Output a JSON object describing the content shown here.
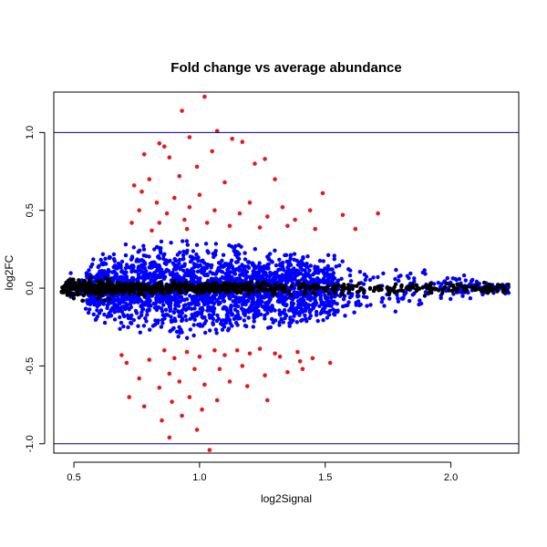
{
  "chart_data": {
    "type": "scatter",
    "title": "Fold change vs average abundance",
    "xlabel": "log2Signal",
    "ylabel": "log2FC",
    "xlim": [
      0.42,
      2.27
    ],
    "ylim": [
      -1.06,
      1.26
    ],
    "x_ticks": [
      0.5,
      1.0,
      1.5,
      2.0
    ],
    "x_tick_labels": [
      "0.5",
      "1.0",
      "1.5",
      "2.0"
    ],
    "y_ticks": [
      -1.0,
      -0.5,
      0.0,
      0.5,
      1.0
    ],
    "y_tick_labels": [
      "-1.0",
      "-0.5",
      "0.0",
      "0.5",
      "1.0"
    ],
    "grid": false,
    "reference_lines": [
      {
        "axis": "y",
        "value": 1.0,
        "color": "#00008b"
      },
      {
        "axis": "y",
        "value": -1.0,
        "color": "#00008b"
      }
    ],
    "series": [
      {
        "color": "#0000ff",
        "description_points": "bulk of features, |log2FC| < ~0.35",
        "x_range": [
          0.48,
          2.23
        ],
        "y_envelope": [
          [
            0.5,
            0.1
          ],
          [
            0.6,
            0.22
          ],
          [
            0.7,
            0.28
          ],
          [
            0.8,
            0.3
          ],
          [
            0.9,
            0.32
          ],
          [
            1.0,
            0.32
          ],
          [
            1.1,
            0.3
          ],
          [
            1.2,
            0.28
          ],
          [
            1.3,
            0.26
          ],
          [
            1.4,
            0.24
          ],
          [
            1.5,
            0.22
          ],
          [
            1.6,
            0.2
          ],
          [
            1.7,
            0.18
          ],
          [
            1.8,
            0.16
          ],
          [
            1.9,
            0.13
          ],
          [
            2.0,
            0.1
          ],
          [
            2.1,
            0.07
          ],
          [
            2.2,
            0.04
          ]
        ]
      },
      {
        "color": "#000000",
        "description_points": "near-zero fold change (dense core)",
        "x_range": [
          0.45,
          2.23
        ]
      },
      {
        "color": "#e41a1c",
        "points": [
          [
            0.93,
            1.14
          ],
          [
            1.02,
            1.23
          ],
          [
            1.07,
            1.01
          ],
          [
            0.96,
            0.97
          ],
          [
            1.13,
            0.96
          ],
          [
            1.17,
            0.94
          ],
          [
            0.84,
            0.93
          ],
          [
            0.86,
            0.91
          ],
          [
            0.78,
            0.86
          ],
          [
            1.05,
            0.88
          ],
          [
            0.88,
            0.84
          ],
          [
            1.26,
            0.83
          ],
          [
            1.22,
            0.8
          ],
          [
            0.99,
            0.78
          ],
          [
            0.74,
            0.66
          ],
          [
            0.8,
            0.7
          ],
          [
            0.92,
            0.72
          ],
          [
            1.3,
            0.7
          ],
          [
            1.1,
            0.68
          ],
          [
            1.49,
            0.61
          ],
          [
            0.77,
            0.62
          ],
          [
            0.83,
            0.55
          ],
          [
            0.9,
            0.58
          ],
          [
            1.0,
            0.6
          ],
          [
            1.2,
            0.55
          ],
          [
            1.33,
            0.52
          ],
          [
            1.44,
            0.5
          ],
          [
            0.76,
            0.5
          ],
          [
            0.87,
            0.48
          ],
          [
            0.96,
            0.52
          ],
          [
            1.06,
            0.5
          ],
          [
            1.16,
            0.48
          ],
          [
            1.27,
            0.46
          ],
          [
            1.38,
            0.44
          ],
          [
            1.57,
            0.47
          ],
          [
            1.71,
            0.48
          ],
          [
            0.73,
            0.42
          ],
          [
            0.84,
            0.42
          ],
          [
            0.94,
            0.44
          ],
          [
            1.03,
            0.42
          ],
          [
            1.12,
            0.4
          ],
          [
            1.24,
            0.39
          ],
          [
            1.35,
            0.4
          ],
          [
            1.46,
            0.38
          ],
          [
            1.62,
            0.38
          ],
          [
            0.95,
            0.38
          ],
          [
            0.81,
            0.37
          ],
          [
            0.88,
            -0.96
          ],
          [
            1.04,
            -1.04
          ],
          [
            0.99,
            -0.91
          ],
          [
            0.85,
            -0.85
          ],
          [
            0.93,
            -0.82
          ],
          [
            1.01,
            -0.78
          ],
          [
            0.78,
            -0.76
          ],
          [
            0.89,
            -0.73
          ],
          [
            0.96,
            -0.7
          ],
          [
            1.07,
            -0.72
          ],
          [
            1.27,
            -0.72
          ],
          [
            0.72,
            -0.7
          ],
          [
            0.84,
            -0.64
          ],
          [
            0.92,
            -0.6
          ],
          [
            1.02,
            -0.62
          ],
          [
            1.12,
            -0.6
          ],
          [
            1.19,
            -0.63
          ],
          [
            0.76,
            -0.58
          ],
          [
            0.88,
            -0.55
          ],
          [
            0.98,
            -0.52
          ],
          [
            1.08,
            -0.52
          ],
          [
            1.17,
            -0.5
          ],
          [
            1.26,
            -0.56
          ],
          [
            1.35,
            -0.54
          ],
          [
            1.41,
            -0.52
          ],
          [
            1.52,
            -0.48
          ],
          [
            0.71,
            -0.48
          ],
          [
            0.8,
            -0.46
          ],
          [
            0.9,
            -0.45
          ],
          [
            1.0,
            -0.44
          ],
          [
            1.1,
            -0.43
          ],
          [
            1.2,
            -0.42
          ],
          [
            1.3,
            -0.42
          ],
          [
            1.39,
            -0.41
          ],
          [
            1.45,
            -0.45
          ],
          [
            0.69,
            -0.43
          ],
          [
            0.86,
            -0.4
          ],
          [
            0.95,
            -0.41
          ],
          [
            1.06,
            -0.4
          ],
          [
            1.15,
            -0.4
          ],
          [
            1.24,
            -0.39
          ],
          [
            1.32,
            -0.44
          ],
          [
            1.4,
            -0.47
          ]
        ]
      }
    ]
  }
}
